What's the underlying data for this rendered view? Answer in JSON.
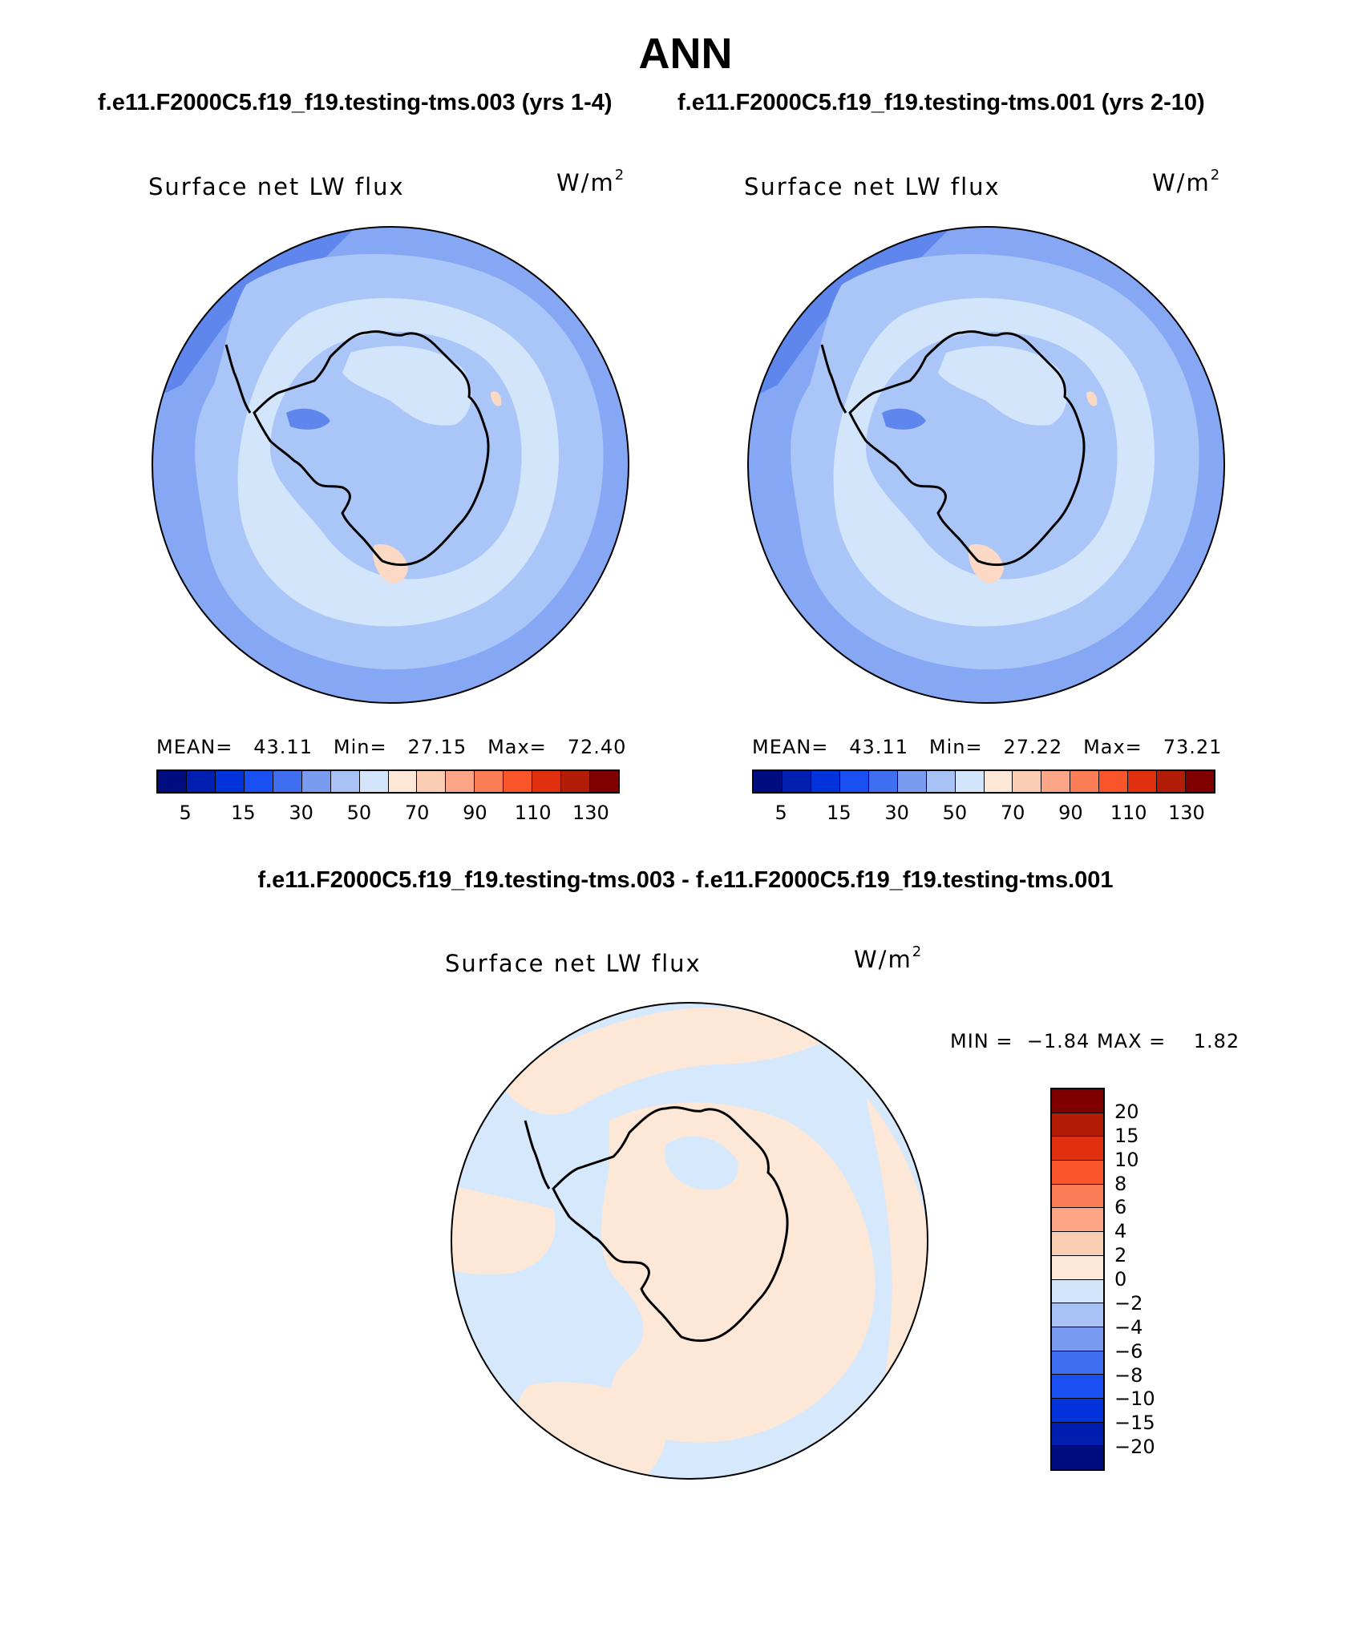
{
  "title": "ANN",
  "panels": {
    "left_header": "f.e11.F2000C5.f19_f19.testing-tms.003 (yrs 1-4)",
    "right_header": "f.e11.F2000C5.f19_f19.testing-tms.001 (yrs 2-10)",
    "diff_header": "f.e11.F2000C5.f19_f19.testing-tms.003 - f.e11.F2000C5.f19_f19.testing-tms.001"
  },
  "map1": {
    "label": "Surface net LW flux",
    "units_base": "W/m",
    "units_exp": "2",
    "mean_label": "MEAN=",
    "mean": "43.11",
    "min_label": "Min=",
    "min": "27.15",
    "max_label": "Max=",
    "max": "72.40"
  },
  "map2": {
    "label": "Surface net LW flux",
    "units_base": "W/m",
    "units_exp": "2",
    "mean_label": "MEAN=",
    "mean": "43.11",
    "min_label": "Min=",
    "min": "27.22",
    "max_label": "Max=",
    "max": "73.21"
  },
  "diff": {
    "label": "Surface net LW flux",
    "units_base": "W/m",
    "units_exp": "2",
    "min_label": "MIN =",
    "min": "−1.84",
    "max_label": "MAX =",
    "max": "1.82"
  },
  "colorbar_main": {
    "colors": [
      "#000d80",
      "#001fb0",
      "#0033d9",
      "#1a4ff2",
      "#3f6ef0",
      "#7a9cf0",
      "#a8c2f5",
      "#d3e5fb",
      "#fde8d8",
      "#fbcdb4",
      "#fca587",
      "#fb7d55",
      "#f8552b",
      "#e0300f",
      "#b31c07",
      "#800000"
    ],
    "labels": [
      "5",
      "15",
      "30",
      "50",
      "70",
      "90",
      "110",
      "130"
    ]
  },
  "colorbar_diff": {
    "colors": [
      "#800000",
      "#b31c07",
      "#e0300f",
      "#f8552b",
      "#fb7d55",
      "#fca587",
      "#fbcdb4",
      "#fde8d8",
      "#d3e5fb",
      "#a8c2f5",
      "#7a9cf0",
      "#3f6ef0",
      "#1a4ff2",
      "#0033d9",
      "#001fb0",
      "#000d80"
    ],
    "labels": [
      "20",
      "15",
      "10",
      "8",
      "6",
      "4",
      "2",
      "0",
      "−2",
      "−4",
      "−6",
      "−8",
      "−10",
      "−15",
      "−20"
    ]
  },
  "field_colors": {
    "outer": "#86a8f4",
    "mid": "#aac5f7",
    "inner": "#d3e5fb",
    "warm": "#fbd9c4",
    "deep": "#5f86ec",
    "diff_cool": "#d6e8fb",
    "diff_warm": "#fde8d8"
  }
}
